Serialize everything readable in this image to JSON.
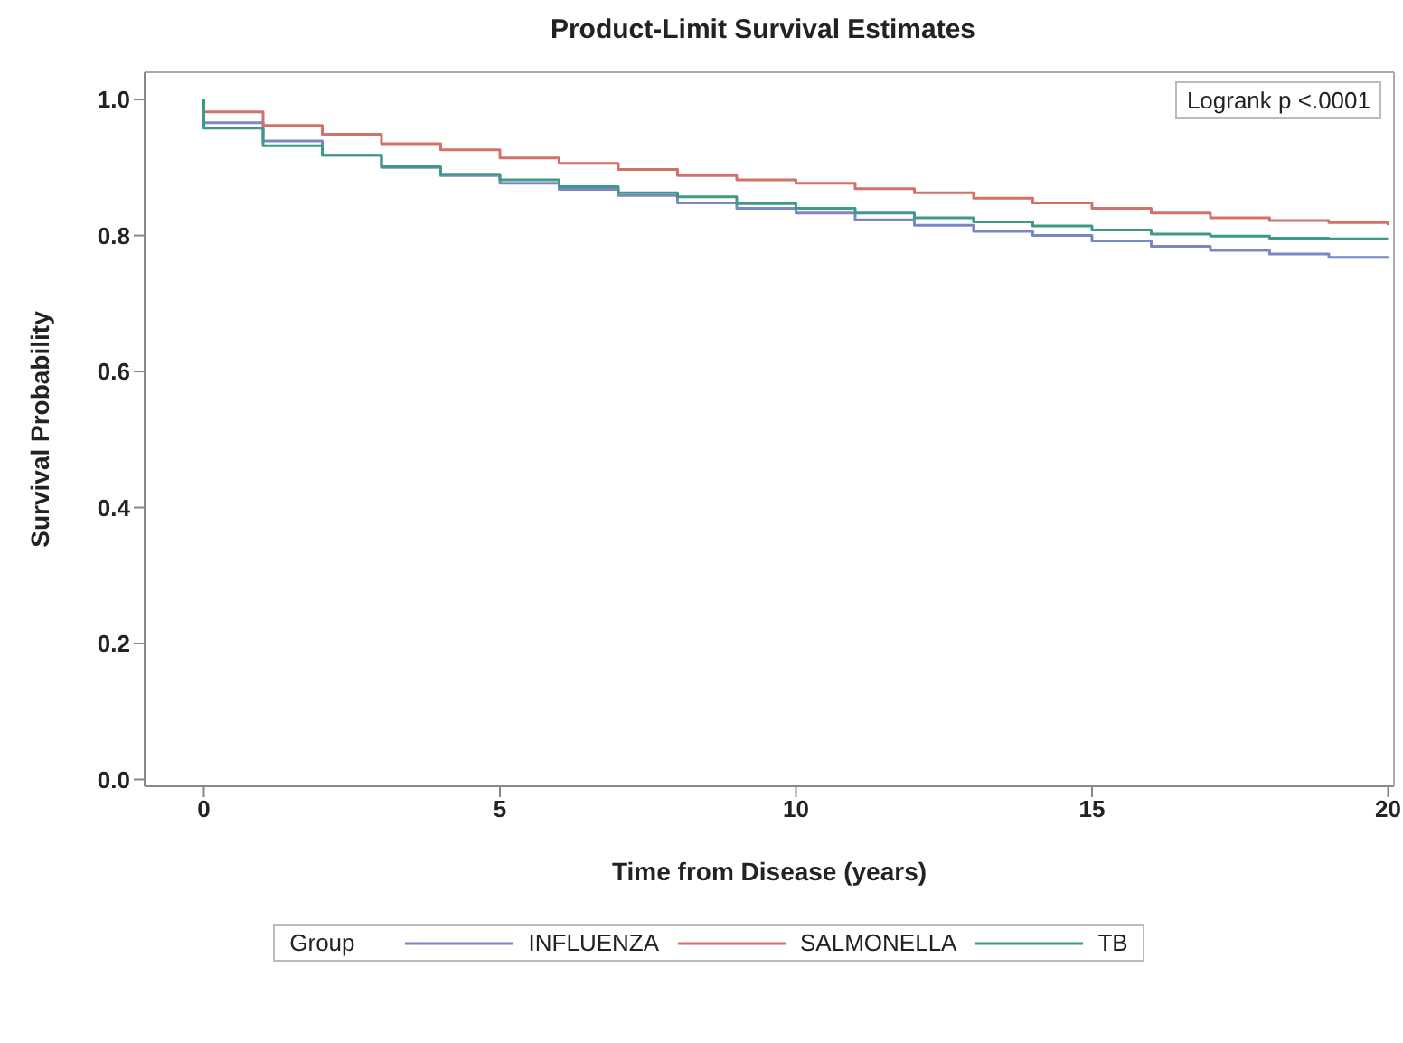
{
  "chart_data": {
    "type": "step",
    "title": "Product-Limit Survival Estimates",
    "xlabel": "Time from Disease (years)",
    "ylabel": "Survival Probability",
    "legend_title": "Group",
    "legend": "bottom",
    "grid": false,
    "marker": "none",
    "line_style": "solid",
    "annotations": [
      "Logrank p <.0001"
    ],
    "xlim": [
      -1,
      20.1
    ],
    "xticks": [
      0,
      5,
      10,
      15,
      20
    ],
    "ylim": [
      -0.01,
      1.04
    ],
    "yticks": [
      {
        "value": 0,
        "label": "0.0"
      },
      {
        "value": 0.2,
        "label": "0.2"
      },
      {
        "value": 0.4,
        "label": "0.4"
      },
      {
        "value": 0.6,
        "label": "0.6"
      },
      {
        "value": 0.8,
        "label": "0.8"
      },
      {
        "value": 1,
        "label": "1.0"
      }
    ],
    "x": [
      0,
      0,
      1,
      2,
      3,
      4,
      5,
      6,
      7,
      8,
      9,
      10,
      11,
      12,
      13,
      14,
      15,
      16,
      17,
      18,
      19,
      20
    ],
    "series": [
      {
        "name": "INFLUENZA",
        "color": "#7b86c4",
        "values": [
          1.0,
          0.966,
          0.939,
          0.918,
          0.9,
          0.888,
          0.877,
          0.868,
          0.859,
          0.848,
          0.84,
          0.833,
          0.823,
          0.815,
          0.806,
          0.8,
          0.792,
          0.784,
          0.778,
          0.773,
          0.768,
          0.766
        ]
      },
      {
        "name": "SALMONELLA",
        "color": "#d2706a",
        "values": [
          null,
          0.982,
          0.962,
          0.949,
          0.935,
          0.926,
          0.914,
          0.906,
          0.897,
          0.888,
          0.882,
          0.877,
          0.869,
          0.863,
          0.855,
          0.848,
          0.84,
          0.833,
          0.826,
          0.822,
          0.819,
          0.815
        ]
      },
      {
        "name": "TB",
        "color": "#3e9a86",
        "values": [
          1.0,
          0.958,
          0.932,
          0.918,
          0.901,
          0.89,
          0.882,
          0.872,
          0.863,
          0.857,
          0.847,
          0.84,
          0.833,
          0.826,
          0.82,
          0.814,
          0.808,
          0.802,
          0.799,
          0.796,
          0.795,
          0.795
        ]
      }
    ]
  }
}
